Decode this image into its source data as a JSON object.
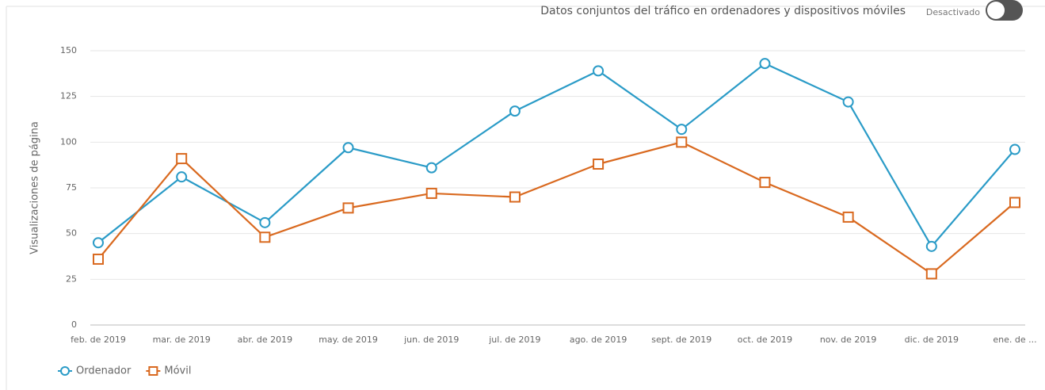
{
  "chart_data": {
    "type": "line",
    "header": "Datos conjuntos del tráfico en ordenadores y dispositivos móviles",
    "toggle_label": "Desactivado",
    "y_label": "Visualizaciones de página",
    "categories": [
      "feb. de 2019",
      "mar. de 2019",
      "abr. de 2019",
      "may. de 2019",
      "jun. de 2019",
      "jul. de 2019",
      "ago. de 2019",
      "sept. de 2019",
      "oct. de 2019",
      "nov. de 2019",
      "dic. de 2019",
      "ene. de ..."
    ],
    "series": [
      {
        "name": "Ordenador",
        "color": "#2a9bc7",
        "marker": "circle",
        "values": [
          45,
          81,
          56,
          97,
          86,
          117,
          139,
          107,
          143,
          122,
          43,
          96
        ]
      },
      {
        "name": "Móvil",
        "color": "#d9691f",
        "marker": "square",
        "values": [
          36,
          91,
          48,
          64,
          72,
          70,
          88,
          100,
          78,
          59,
          28,
          67
        ]
      }
    ],
    "ylim": [
      0,
      150
    ],
    "yticks": [
      0,
      25,
      50,
      75,
      100,
      125,
      150
    ],
    "grid": true,
    "legend": "bottom-left"
  }
}
